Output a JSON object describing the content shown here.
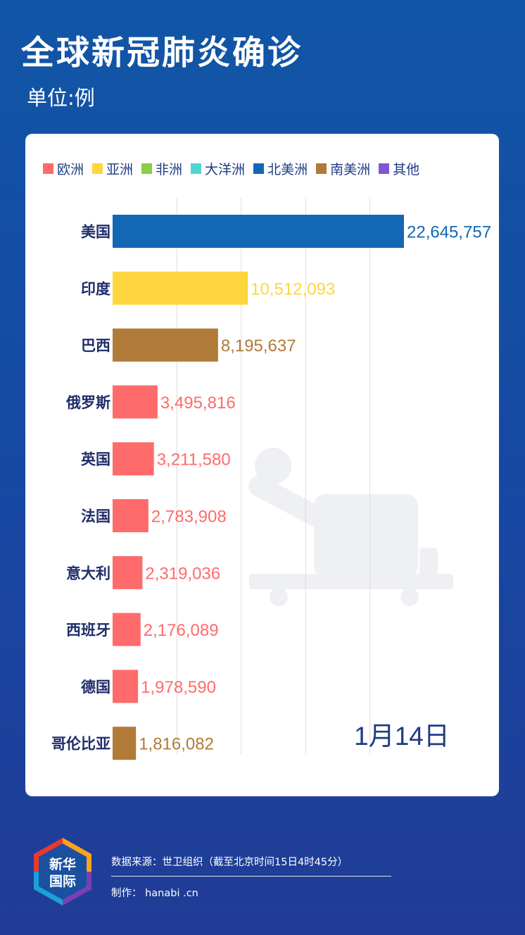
{
  "header": {
    "title": "全球新冠肺炎确诊",
    "unit": "单位:例"
  },
  "legend": [
    {
      "label": "欧洲",
      "color": "#ff6b6b"
    },
    {
      "label": "亚洲",
      "color": "#ffd53e"
    },
    {
      "label": "非洲",
      "color": "#8bcc48"
    },
    {
      "label": "大洋洲",
      "color": "#4fd6d2"
    },
    {
      "label": "北美洲",
      "color": "#1367b5"
    },
    {
      "label": "南美洲",
      "color": "#b07a38"
    },
    {
      "label": "其他",
      "color": "#7e57d1"
    }
  ],
  "chart_data": {
    "type": "bar",
    "orientation": "horizontal",
    "date_label": "1月14日",
    "categories": [
      "美国",
      "印度",
      "巴西",
      "俄罗斯",
      "英国",
      "法国",
      "意大利",
      "西班牙",
      "德国",
      "哥伦比亚"
    ],
    "values": [
      22645757,
      10512093,
      8195637,
      3495816,
      3211580,
      2783908,
      2319036,
      2176089,
      1978590,
      1816082
    ],
    "value_labels": [
      "22,645,757",
      "10,512,093",
      "8,195,637",
      "3,495,816",
      "3,211,580",
      "2,783,908",
      "2,319,036",
      "2,176,089",
      "1,978,590",
      "1,816,082"
    ],
    "region": [
      "北美洲",
      "亚洲",
      "南美洲",
      "欧洲",
      "欧洲",
      "欧洲",
      "欧洲",
      "欧洲",
      "欧洲",
      "南美洲"
    ],
    "xlim": [
      0,
      25000000
    ],
    "grid": true
  },
  "footer": {
    "logo_text_line1": "新华",
    "logo_text_line2": "国际",
    "source": "数据来源：世卫组织（截至北京时间15日4时45分）",
    "credit": "制作： hanabi .cn"
  }
}
